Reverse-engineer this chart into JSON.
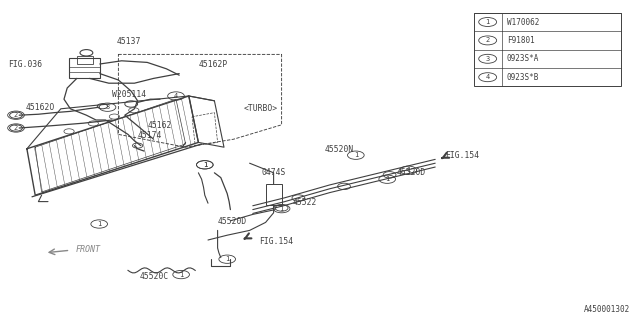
{
  "bg_color": "#ffffff",
  "line_color": "#404040",
  "text_color": "#404040",
  "fig_code": "A450001302",
  "legend_items": [
    {
      "num": "1",
      "text": "W170062"
    },
    {
      "num": "2",
      "text": "F91801"
    },
    {
      "num": "3",
      "text": "0923S*A"
    },
    {
      "num": "4",
      "text": "0923S*B"
    }
  ],
  "lw_main": 0.9,
  "lw_thin": 0.6,
  "font_size": 5.8,
  "circ_r": 0.013
}
